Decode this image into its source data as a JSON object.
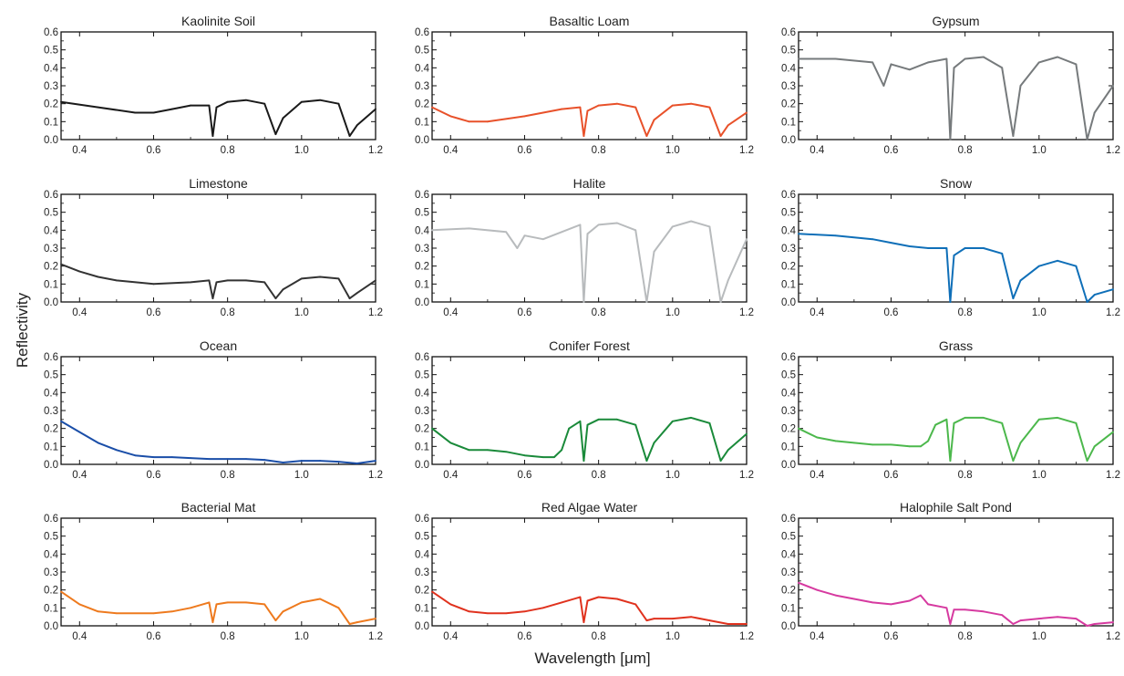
{
  "figure": {
    "xlabel": "Wavelength [μm]",
    "ylabel": "Reflectivity"
  },
  "chart_data": [
    {
      "type": "line",
      "title": "Kaolinite Soil",
      "color": "#1a1a1a",
      "xlim": [
        0.35,
        1.2
      ],
      "ylim": [
        0,
        0.6
      ],
      "x_ticks": [
        0.4,
        0.6,
        0.8,
        1.0,
        1.2
      ],
      "y_ticks": [
        0.0,
        0.1,
        0.2,
        0.3,
        0.4,
        0.5,
        0.6
      ],
      "x": [
        0.35,
        0.45,
        0.55,
        0.6,
        0.65,
        0.7,
        0.75,
        0.76,
        0.77,
        0.8,
        0.85,
        0.9,
        0.93,
        0.95,
        1.0,
        1.05,
        1.1,
        1.13,
        1.15,
        1.2
      ],
      "y": [
        0.21,
        0.18,
        0.15,
        0.15,
        0.17,
        0.19,
        0.19,
        0.02,
        0.18,
        0.21,
        0.22,
        0.2,
        0.03,
        0.12,
        0.21,
        0.22,
        0.2,
        0.02,
        0.08,
        0.17
      ]
    },
    {
      "type": "line",
      "title": "Basaltic Loam",
      "color": "#e8512a",
      "xlim": [
        0.35,
        1.2
      ],
      "ylim": [
        0,
        0.6
      ],
      "x_ticks": [
        0.4,
        0.6,
        0.8,
        1.0,
        1.2
      ],
      "y_ticks": [
        0.0,
        0.1,
        0.2,
        0.3,
        0.4,
        0.5,
        0.6
      ],
      "x": [
        0.35,
        0.4,
        0.45,
        0.5,
        0.6,
        0.7,
        0.75,
        0.76,
        0.77,
        0.8,
        0.85,
        0.9,
        0.93,
        0.95,
        1.0,
        1.05,
        1.1,
        1.13,
        1.15,
        1.2
      ],
      "y": [
        0.18,
        0.13,
        0.1,
        0.1,
        0.13,
        0.17,
        0.18,
        0.02,
        0.16,
        0.19,
        0.2,
        0.18,
        0.02,
        0.11,
        0.19,
        0.2,
        0.18,
        0.02,
        0.08,
        0.15
      ]
    },
    {
      "type": "line",
      "title": "Gypsum",
      "color": "#767a7c",
      "xlim": [
        0.35,
        1.2
      ],
      "ylim": [
        0,
        0.6
      ],
      "x_ticks": [
        0.4,
        0.6,
        0.8,
        1.0,
        1.2
      ],
      "y_ticks": [
        0.0,
        0.1,
        0.2,
        0.3,
        0.4,
        0.5,
        0.6
      ],
      "x": [
        0.35,
        0.45,
        0.55,
        0.58,
        0.6,
        0.65,
        0.7,
        0.75,
        0.76,
        0.77,
        0.8,
        0.85,
        0.9,
        0.93,
        0.95,
        1.0,
        1.05,
        1.1,
        1.13,
        1.15,
        1.2
      ],
      "y": [
        0.45,
        0.45,
        0.43,
        0.3,
        0.42,
        0.39,
        0.43,
        0.45,
        0.0,
        0.4,
        0.45,
        0.46,
        0.4,
        0.02,
        0.3,
        0.43,
        0.46,
        0.42,
        0.0,
        0.15,
        0.3
      ]
    },
    {
      "type": "line",
      "title": "Limestone",
      "color": "#333333",
      "xlim": [
        0.35,
        1.2
      ],
      "ylim": [
        0,
        0.6
      ],
      "x_ticks": [
        0.4,
        0.6,
        0.8,
        1.0,
        1.2
      ],
      "y_ticks": [
        0.0,
        0.1,
        0.2,
        0.3,
        0.4,
        0.5,
        0.6
      ],
      "x": [
        0.35,
        0.4,
        0.45,
        0.5,
        0.6,
        0.7,
        0.75,
        0.76,
        0.77,
        0.8,
        0.85,
        0.9,
        0.93,
        0.95,
        1.0,
        1.05,
        1.1,
        1.13,
        1.15,
        1.2
      ],
      "y": [
        0.21,
        0.17,
        0.14,
        0.12,
        0.1,
        0.11,
        0.12,
        0.02,
        0.11,
        0.12,
        0.12,
        0.11,
        0.02,
        0.07,
        0.13,
        0.14,
        0.13,
        0.02,
        0.05,
        0.12
      ]
    },
    {
      "type": "line",
      "title": "Halite",
      "color": "#b8bbbd",
      "xlim": [
        0.35,
        1.2
      ],
      "ylim": [
        0,
        0.6
      ],
      "x_ticks": [
        0.4,
        0.6,
        0.8,
        1.0,
        1.2
      ],
      "y_ticks": [
        0.0,
        0.1,
        0.2,
        0.3,
        0.4,
        0.5,
        0.6
      ],
      "x": [
        0.35,
        0.45,
        0.55,
        0.58,
        0.6,
        0.65,
        0.7,
        0.75,
        0.76,
        0.77,
        0.8,
        0.85,
        0.9,
        0.93,
        0.95,
        1.0,
        1.05,
        1.1,
        1.13,
        1.15,
        1.2
      ],
      "y": [
        0.4,
        0.41,
        0.39,
        0.3,
        0.37,
        0.35,
        0.39,
        0.43,
        0.0,
        0.38,
        0.43,
        0.44,
        0.4,
        0.0,
        0.28,
        0.42,
        0.45,
        0.42,
        0.0,
        0.12,
        0.35
      ]
    },
    {
      "type": "line",
      "title": "Snow",
      "color": "#0f6fb8",
      "xlim": [
        0.35,
        1.2
      ],
      "ylim": [
        0,
        0.6
      ],
      "x_ticks": [
        0.4,
        0.6,
        0.8,
        1.0,
        1.2
      ],
      "y_ticks": [
        0.0,
        0.1,
        0.2,
        0.3,
        0.4,
        0.5,
        0.6
      ],
      "x": [
        0.35,
        0.45,
        0.55,
        0.6,
        0.65,
        0.7,
        0.75,
        0.76,
        0.77,
        0.8,
        0.85,
        0.9,
        0.93,
        0.95,
        1.0,
        1.05,
        1.1,
        1.13,
        1.15,
        1.2
      ],
      "y": [
        0.38,
        0.37,
        0.35,
        0.33,
        0.31,
        0.3,
        0.3,
        0.0,
        0.26,
        0.3,
        0.3,
        0.27,
        0.02,
        0.12,
        0.2,
        0.23,
        0.2,
        0.0,
        0.04,
        0.07
      ]
    },
    {
      "type": "line",
      "title": "Ocean",
      "color": "#1a4ea8",
      "xlim": [
        0.35,
        1.2
      ],
      "ylim": [
        0,
        0.6
      ],
      "x_ticks": [
        0.4,
        0.6,
        0.8,
        1.0,
        1.2
      ],
      "y_ticks": [
        0.0,
        0.1,
        0.2,
        0.3,
        0.4,
        0.5,
        0.6
      ],
      "x": [
        0.35,
        0.4,
        0.45,
        0.5,
        0.55,
        0.6,
        0.65,
        0.7,
        0.75,
        0.8,
        0.85,
        0.9,
        0.95,
        1.0,
        1.05,
        1.1,
        1.15,
        1.2
      ],
      "y": [
        0.24,
        0.18,
        0.12,
        0.08,
        0.05,
        0.04,
        0.04,
        0.035,
        0.03,
        0.03,
        0.03,
        0.025,
        0.01,
        0.02,
        0.02,
        0.015,
        0.005,
        0.02
      ]
    },
    {
      "type": "line",
      "title": "Conifer Forest",
      "color": "#1a8a3a",
      "xlim": [
        0.35,
        1.2
      ],
      "ylim": [
        0,
        0.6
      ],
      "x_ticks": [
        0.4,
        0.6,
        0.8,
        1.0,
        1.2
      ],
      "y_ticks": [
        0.0,
        0.1,
        0.2,
        0.3,
        0.4,
        0.5,
        0.6
      ],
      "x": [
        0.35,
        0.4,
        0.45,
        0.5,
        0.55,
        0.6,
        0.65,
        0.68,
        0.7,
        0.72,
        0.75,
        0.76,
        0.77,
        0.8,
        0.85,
        0.9,
        0.93,
        0.95,
        1.0,
        1.05,
        1.1,
        1.13,
        1.15,
        1.2
      ],
      "y": [
        0.2,
        0.12,
        0.08,
        0.08,
        0.07,
        0.05,
        0.04,
        0.04,
        0.08,
        0.2,
        0.24,
        0.02,
        0.22,
        0.25,
        0.25,
        0.22,
        0.02,
        0.12,
        0.24,
        0.26,
        0.23,
        0.02,
        0.08,
        0.17
      ]
    },
    {
      "type": "line",
      "title": "Grass",
      "color": "#4cb84c",
      "xlim": [
        0.35,
        1.2
      ],
      "ylim": [
        0,
        0.6
      ],
      "x_ticks": [
        0.4,
        0.6,
        0.8,
        1.0,
        1.2
      ],
      "y_ticks": [
        0.0,
        0.1,
        0.2,
        0.3,
        0.4,
        0.5,
        0.6
      ],
      "x": [
        0.35,
        0.4,
        0.45,
        0.5,
        0.55,
        0.6,
        0.65,
        0.68,
        0.7,
        0.72,
        0.75,
        0.76,
        0.77,
        0.8,
        0.85,
        0.9,
        0.93,
        0.95,
        1.0,
        1.05,
        1.1,
        1.13,
        1.15,
        1.2
      ],
      "y": [
        0.2,
        0.15,
        0.13,
        0.12,
        0.11,
        0.11,
        0.1,
        0.1,
        0.13,
        0.22,
        0.25,
        0.02,
        0.23,
        0.26,
        0.26,
        0.23,
        0.02,
        0.12,
        0.25,
        0.26,
        0.23,
        0.02,
        0.1,
        0.18
      ]
    },
    {
      "type": "line",
      "title": "Bacterial Mat",
      "color": "#ee7a1e",
      "xlim": [
        0.35,
        1.2
      ],
      "ylim": [
        0,
        0.6
      ],
      "x_ticks": [
        0.4,
        0.6,
        0.8,
        1.0,
        1.2
      ],
      "y_ticks": [
        0.0,
        0.1,
        0.2,
        0.3,
        0.4,
        0.5,
        0.6
      ],
      "x": [
        0.35,
        0.4,
        0.45,
        0.5,
        0.6,
        0.65,
        0.7,
        0.75,
        0.76,
        0.77,
        0.8,
        0.85,
        0.9,
        0.93,
        0.95,
        1.0,
        1.05,
        1.1,
        1.13,
        1.15,
        1.2
      ],
      "y": [
        0.19,
        0.12,
        0.08,
        0.07,
        0.07,
        0.08,
        0.1,
        0.13,
        0.02,
        0.12,
        0.13,
        0.13,
        0.12,
        0.03,
        0.08,
        0.13,
        0.15,
        0.1,
        0.01,
        0.02,
        0.04
      ]
    },
    {
      "type": "line",
      "title": "Red Algae Water",
      "color": "#e0321e",
      "xlim": [
        0.35,
        1.2
      ],
      "ylim": [
        0,
        0.6
      ],
      "x_ticks": [
        0.4,
        0.6,
        0.8,
        1.0,
        1.2
      ],
      "y_ticks": [
        0.0,
        0.1,
        0.2,
        0.3,
        0.4,
        0.5,
        0.6
      ],
      "x": [
        0.35,
        0.4,
        0.45,
        0.5,
        0.55,
        0.6,
        0.65,
        0.7,
        0.75,
        0.76,
        0.77,
        0.8,
        0.85,
        0.9,
        0.93,
        0.95,
        1.0,
        1.05,
        1.1,
        1.15,
        1.2
      ],
      "y": [
        0.19,
        0.12,
        0.08,
        0.07,
        0.07,
        0.08,
        0.1,
        0.13,
        0.16,
        0.02,
        0.14,
        0.16,
        0.15,
        0.12,
        0.03,
        0.04,
        0.04,
        0.05,
        0.03,
        0.01,
        0.01
      ]
    },
    {
      "type": "line",
      "title": "Halophile Salt Pond",
      "color": "#d63aa0",
      "xlim": [
        0.35,
        1.2
      ],
      "ylim": [
        0,
        0.6
      ],
      "x_ticks": [
        0.4,
        0.6,
        0.8,
        1.0,
        1.2
      ],
      "y_ticks": [
        0.0,
        0.1,
        0.2,
        0.3,
        0.4,
        0.5,
        0.6
      ],
      "x": [
        0.35,
        0.4,
        0.45,
        0.5,
        0.55,
        0.6,
        0.65,
        0.68,
        0.7,
        0.75,
        0.76,
        0.77,
        0.8,
        0.85,
        0.9,
        0.93,
        0.95,
        1.0,
        1.05,
        1.1,
        1.13,
        1.15,
        1.2
      ],
      "y": [
        0.24,
        0.2,
        0.17,
        0.15,
        0.13,
        0.12,
        0.14,
        0.17,
        0.12,
        0.1,
        0.01,
        0.09,
        0.09,
        0.08,
        0.06,
        0.01,
        0.03,
        0.04,
        0.05,
        0.04,
        0.0,
        0.01,
        0.02
      ]
    }
  ]
}
